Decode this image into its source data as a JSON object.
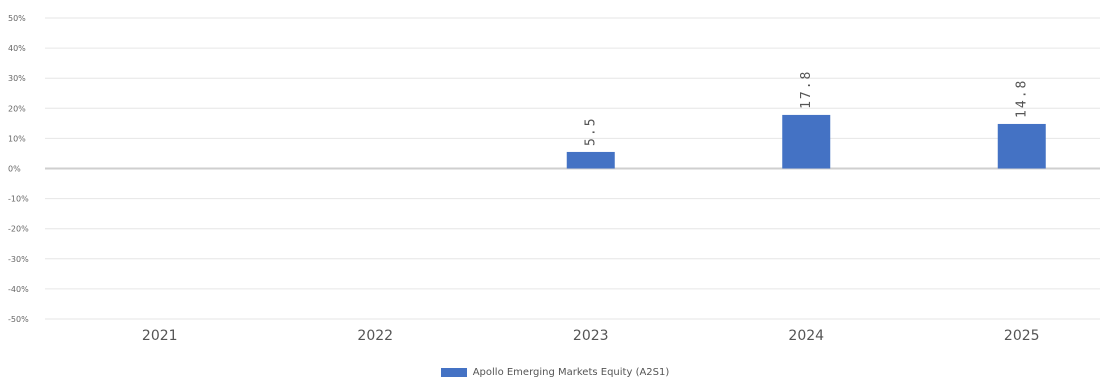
{
  "colors": {
    "series": "#4472c4",
    "grid": "#e6e6e6",
    "zero_line": "#cfcfcf",
    "tick_text": "#666666",
    "category_text": "#555555",
    "label_text": "#555555"
  },
  "chart_data": {
    "type": "bar",
    "categories": [
      "2021",
      "2022",
      "2023",
      "2024",
      "2025"
    ],
    "yticks": [
      "50%",
      "40%",
      "30%",
      "20%",
      "10%",
      "0%",
      "-10%",
      "-20%",
      "-30%",
      "-40%",
      "-50%"
    ],
    "ylim": [
      -50,
      50
    ],
    "grid": true,
    "legend_position": "bottom",
    "series": [
      {
        "name": "Apollo Emerging Markets Equity (A2S1)",
        "values": [
          null,
          null,
          5.5,
          17.8,
          14.8
        ],
        "labels": [
          "",
          "",
          "5.5",
          "17.8",
          "14.8"
        ]
      }
    ]
  }
}
